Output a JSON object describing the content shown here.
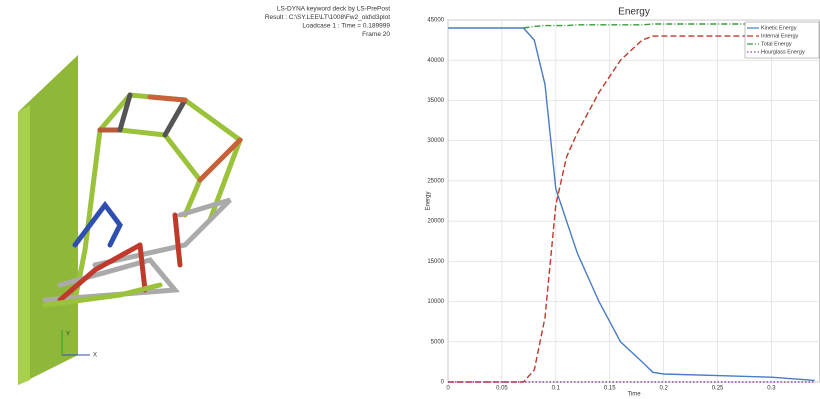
{
  "info_lines": [
    "LS-DYNA keyword deck by LS-PrePost",
    "Result : C:\\SY.LEE\\LT\\1008\\Fw2_old\\d3plot",
    "Loadcase 1 : Time = 0.189999",
    "Frame 20"
  ],
  "triad": {
    "y_label": "Y",
    "x_label": "X"
  },
  "chart_data": {
    "type": "line",
    "title": "Energy",
    "x_label": "Time",
    "y_label": "Energy",
    "x": [
      0,
      0.05,
      0.07,
      0.08,
      0.09,
      0.1,
      0.11,
      0.12,
      0.14,
      0.16,
      0.18,
      0.19,
      0.2,
      0.25,
      0.3,
      0.34
    ],
    "series": [
      {
        "name": "Kinetic Energy",
        "color": "#4a7cc4",
        "style": "solid",
        "values": [
          44000,
          44000,
          44000,
          42500,
          37000,
          24000,
          20000,
          16000,
          10000,
          5000,
          2500,
          1200,
          1000,
          800,
          600,
          200
        ]
      },
      {
        "name": "Internal Energy",
        "color": "#c0392b",
        "style": "dashed",
        "values": [
          0,
          0,
          0,
          1500,
          8000,
          22000,
          28000,
          31000,
          36000,
          40000,
          42500,
          43000,
          43000,
          43000,
          43000,
          43000
        ]
      },
      {
        "name": "Total Energy",
        "color": "#3a9a3a",
        "style": "dashdot",
        "values": [
          null,
          null,
          44000,
          44200,
          44300,
          44300,
          44300,
          44400,
          44400,
          44400,
          44400,
          44500,
          44500,
          44500,
          44500,
          44500
        ]
      },
      {
        "name": "Hourglass Energy",
        "color": "#8e44ad",
        "style": "dotted",
        "values": [
          0,
          0,
          0,
          0,
          0,
          0,
          0,
          0,
          0,
          0,
          0,
          0,
          0,
          0,
          0,
          0
        ]
      }
    ],
    "xlim": [
      0,
      0.345
    ],
    "xticks": [
      0,
      0.05,
      0.1,
      0.15,
      0.2,
      0.25,
      0.3
    ],
    "ylim": [
      0,
      45000
    ],
    "yticks": [
      0,
      5000,
      10000,
      15000,
      20000,
      25000,
      30000,
      35000,
      40000,
      45000
    ],
    "grid": true,
    "legend": "top-right"
  }
}
